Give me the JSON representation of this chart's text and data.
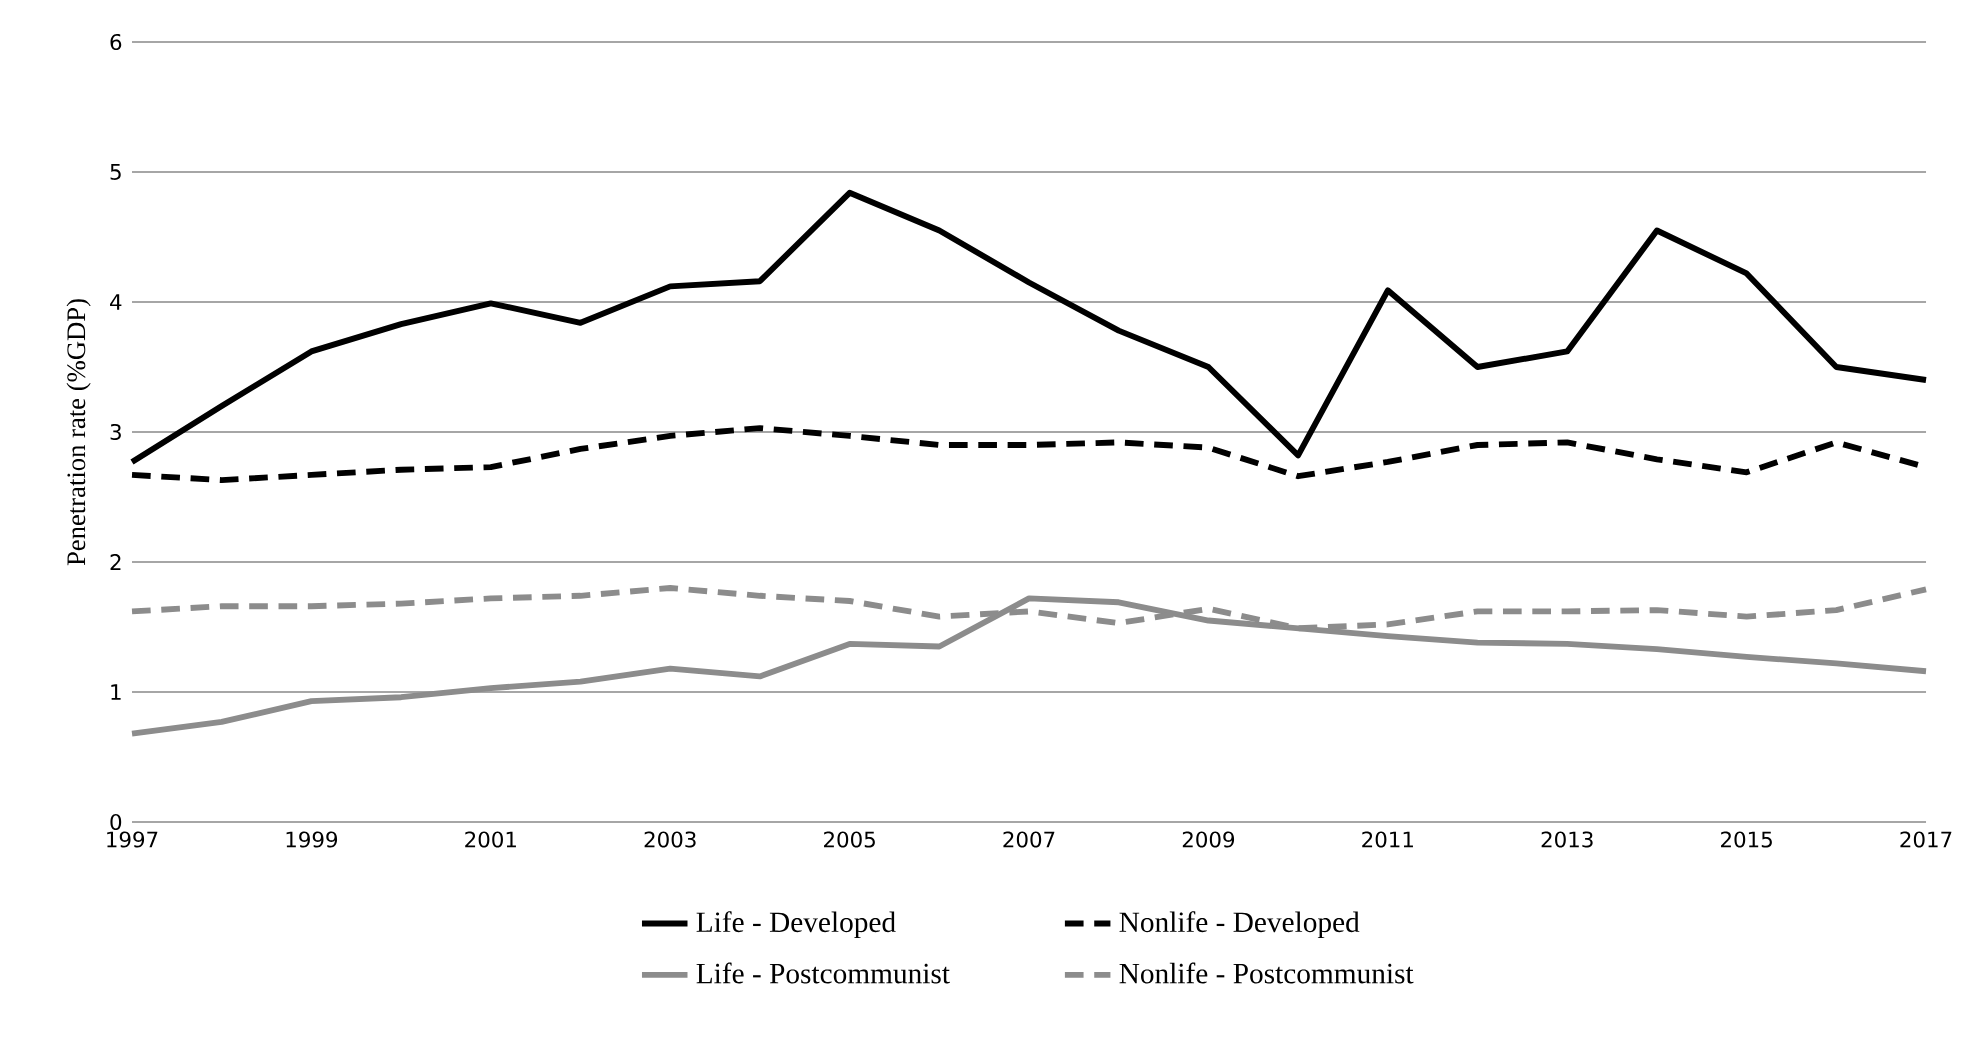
{
  "chart_data": {
    "type": "line",
    "ylabel": "Penetration rate (%GDP)",
    "x": [
      1997,
      1998,
      1999,
      2000,
      2001,
      2002,
      2003,
      2004,
      2005,
      2006,
      2007,
      2008,
      2009,
      2010,
      2011,
      2012,
      2013,
      2014,
      2015,
      2016,
      2017
    ],
    "xlim": [
      1997,
      2017
    ],
    "xticks": [
      1997,
      1999,
      2001,
      2003,
      2005,
      2007,
      2009,
      2011,
      2013,
      2015,
      2017
    ],
    "ylim": [
      0,
      6
    ],
    "yticks": [
      0,
      1,
      2,
      3,
      4,
      5,
      6
    ],
    "grid": "y",
    "legend": "bottom",
    "series": [
      {
        "name": "Life - Developed",
        "color": "#000000",
        "line_style": "solid",
        "values": [
          2.77,
          3.2,
          3.62,
          3.83,
          3.99,
          3.84,
          4.12,
          4.16,
          4.84,
          4.55,
          4.15,
          3.78,
          3.5,
          2.82,
          4.09,
          3.5,
          3.62,
          4.55,
          4.22,
          3.5,
          3.4
        ]
      },
      {
        "name": "Nonlife - Developed",
        "color": "#000000",
        "line_style": "dashed",
        "values": [
          2.67,
          2.63,
          2.67,
          2.71,
          2.73,
          2.87,
          2.97,
          3.03,
          2.97,
          2.9,
          2.9,
          2.92,
          2.88,
          2.66,
          2.77,
          2.9,
          2.92,
          2.79,
          2.69,
          2.92,
          2.73
        ]
      },
      {
        "name": "Life - Postcommunist",
        "color": "#8c8c8c",
        "line_style": "solid",
        "values": [
          0.68,
          0.77,
          0.93,
          0.96,
          1.03,
          1.08,
          1.18,
          1.12,
          1.37,
          1.35,
          1.72,
          1.69,
          1.55,
          1.49,
          1.43,
          1.38,
          1.37,
          1.33,
          1.27,
          1.22,
          1.16
        ]
      },
      {
        "name": "Nonlife - Postcommunist",
        "color": "#8c8c8c",
        "line_style": "dashed",
        "values": [
          1.62,
          1.66,
          1.66,
          1.68,
          1.72,
          1.74,
          1.8,
          1.74,
          1.7,
          1.58,
          1.62,
          1.53,
          1.64,
          1.49,
          1.52,
          1.62,
          1.62,
          1.63,
          1.58,
          1.63,
          1.79
        ]
      }
    ]
  }
}
